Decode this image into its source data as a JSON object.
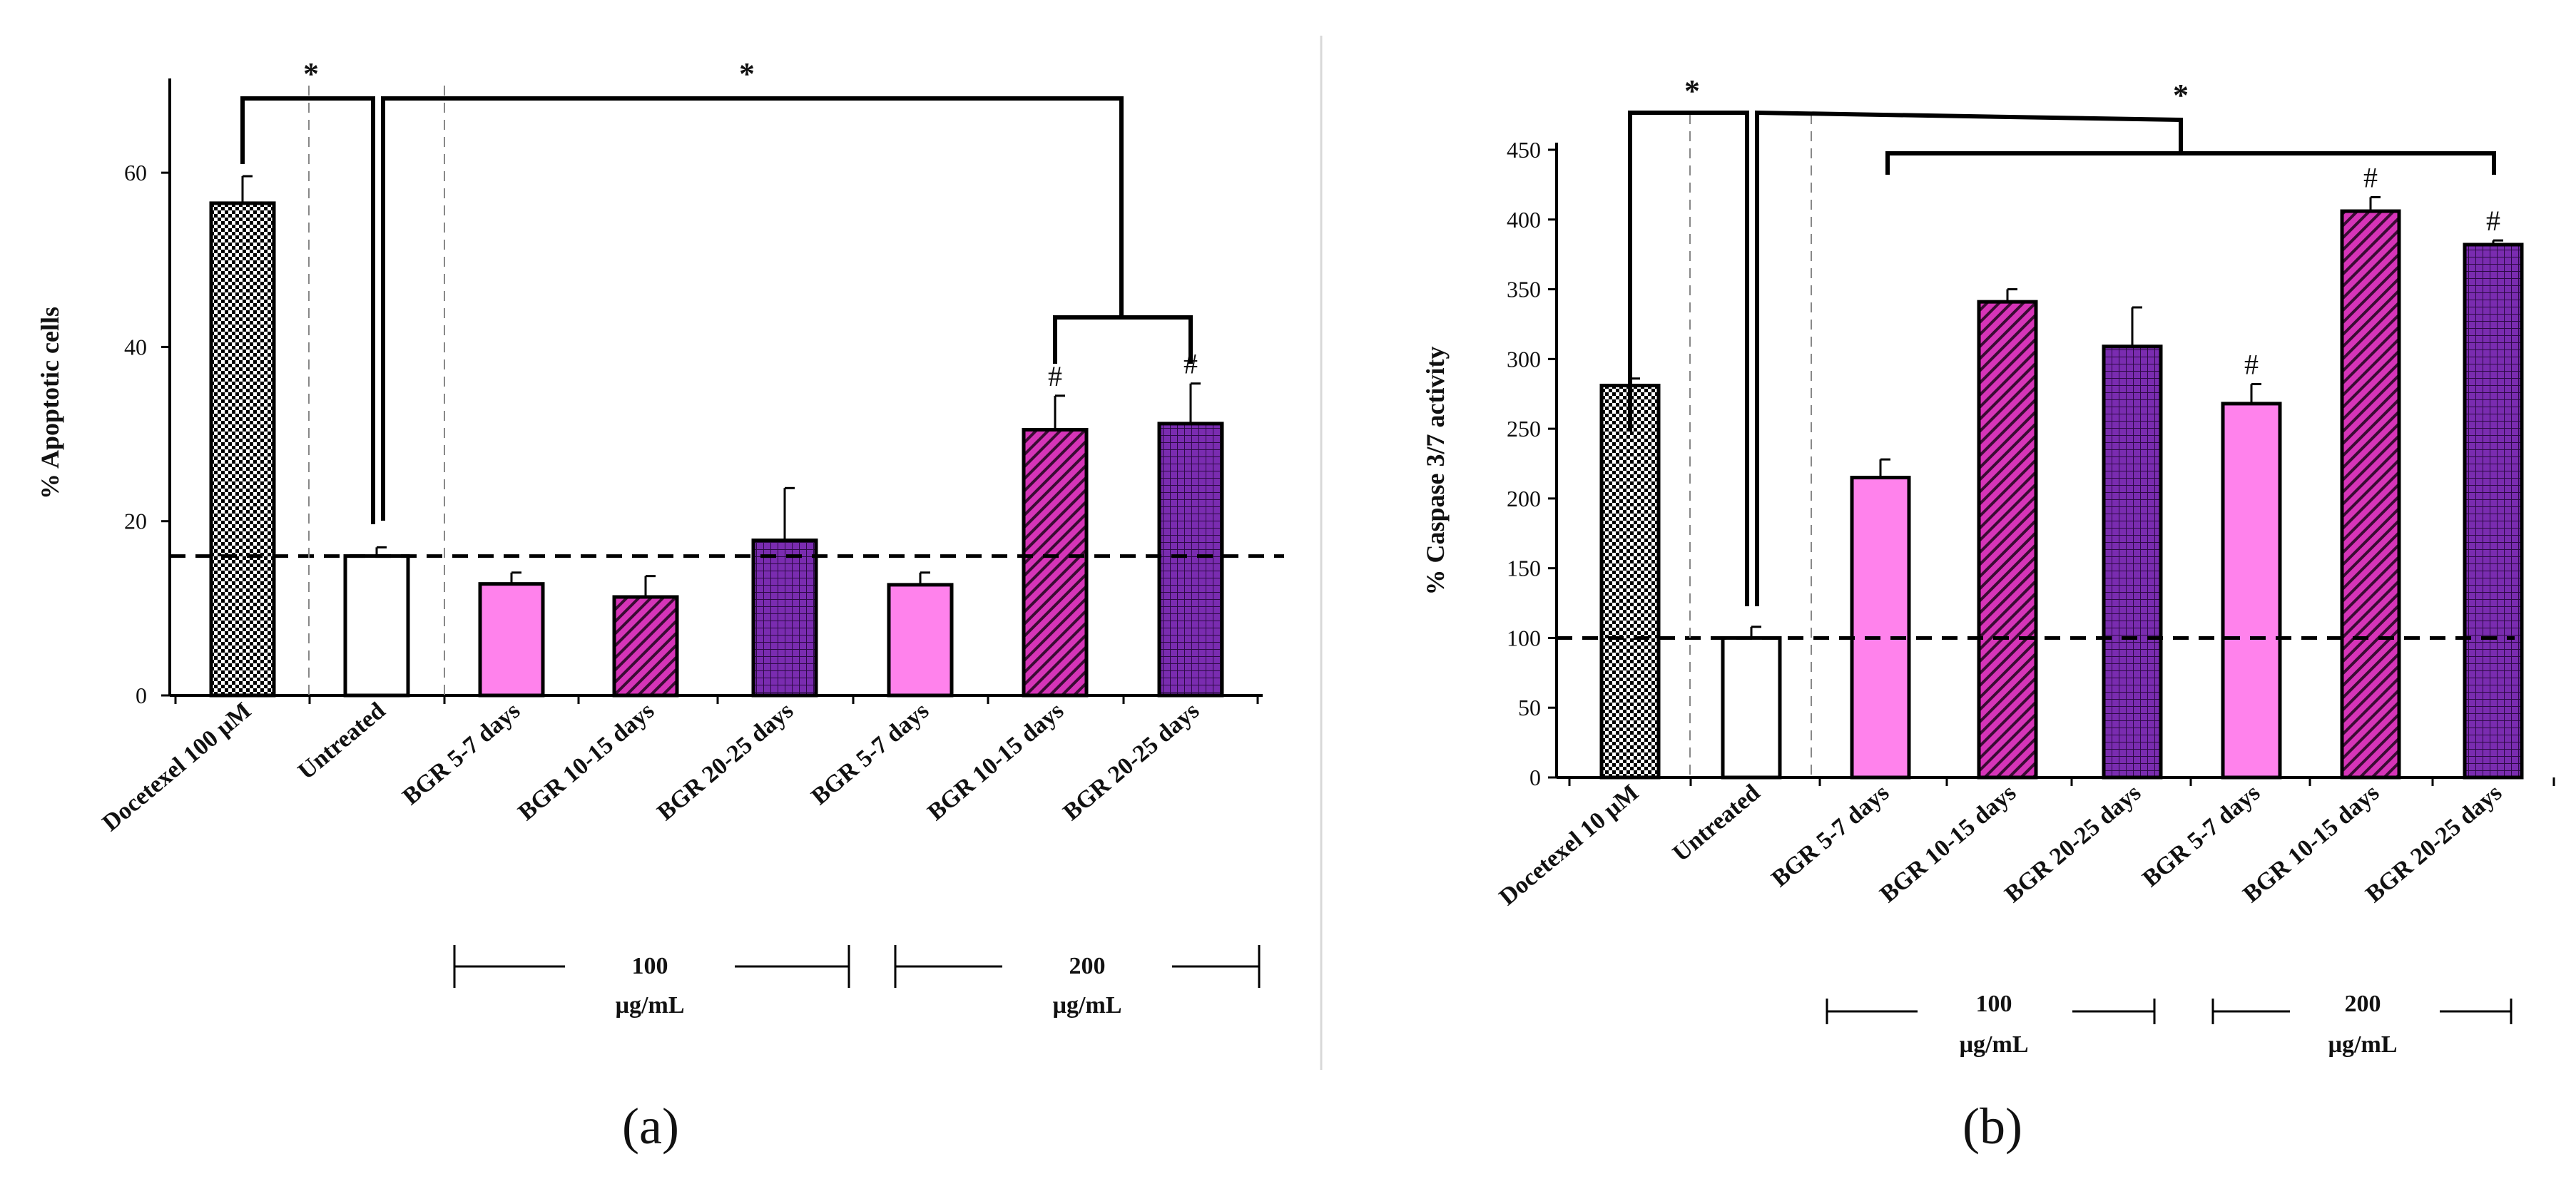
{
  "colors": {
    "checker": "#000000",
    "untreated": "#ffffff",
    "pink": "#ff82ec",
    "magenta": "#d634b8",
    "purple": "#7a2cb0",
    "bar_edge": "#000000"
  },
  "chart_data": [
    {
      "type": "bar",
      "panel_label": "(a)",
      "ylabel": "% Apoptotic cells",
      "ylim": [
        0,
        70
      ],
      "yticks": [
        0,
        20,
        40,
        60
      ],
      "reference_line": 16,
      "categories": [
        "Docetexel 100 µM",
        "Untreated",
        "BGR 5-7 days",
        "BGR 10-15 days",
        "BGR 20-25 days",
        "BGR 5-7 days",
        "BGR 10-15 days",
        "BGR 20-25 days"
      ],
      "values": [
        56.5,
        16,
        12.8,
        11.3,
        17.8,
        12.7,
        30.5,
        31.2
      ],
      "errors": [
        3.1,
        1.0,
        1.3,
        2.4,
        6.0,
        1.4,
        3.9,
        4.6
      ],
      "fills": [
        "checker",
        "white",
        "pink",
        "magenta-hatch",
        "purple-grid",
        "pink",
        "magenta-hatch",
        "purple-grid"
      ],
      "markers": [
        "",
        "",
        "",
        "",
        "",
        "",
        "#",
        "#"
      ],
      "significance": [
        "*",
        "*"
      ],
      "groups": [
        {
          "label_top": "100",
          "label_bottom": "µg/mL"
        },
        {
          "label_top": "200",
          "label_bottom": "µg/mL"
        }
      ]
    },
    {
      "type": "bar",
      "panel_label": "(b)",
      "ylabel": "% Caspase 3/7 activity",
      "ylim": [
        0,
        450
      ],
      "yticks": [
        0,
        50,
        100,
        150,
        200,
        250,
        300,
        350,
        400,
        450
      ],
      "reference_line": 100,
      "categories": [
        "Docetexel 10 µM",
        "Untreated",
        "BGR 5-7 days",
        "BGR 10-15 days",
        "BGR 20-25 days",
        "BGR 5-7 days",
        "BGR 10-15 days",
        "BGR 20-25 days"
      ],
      "values": [
        281,
        100,
        215,
        341,
        309,
        268,
        406,
        382
      ],
      "errors": [
        5,
        8,
        13,
        9,
        28,
        14,
        10,
        3
      ],
      "fills": [
        "checker",
        "white",
        "pink",
        "magenta-hatch",
        "purple-grid",
        "pink",
        "magenta-hatch",
        "purple-grid"
      ],
      "markers": [
        "",
        "",
        "",
        "",
        "",
        "#",
        "#",
        "#"
      ],
      "significance": [
        "*",
        "*"
      ],
      "groups": [
        {
          "label_top": "100",
          "label_bottom": "µg/mL"
        },
        {
          "label_top": "200",
          "label_bottom": "µg/mL"
        }
      ]
    }
  ]
}
